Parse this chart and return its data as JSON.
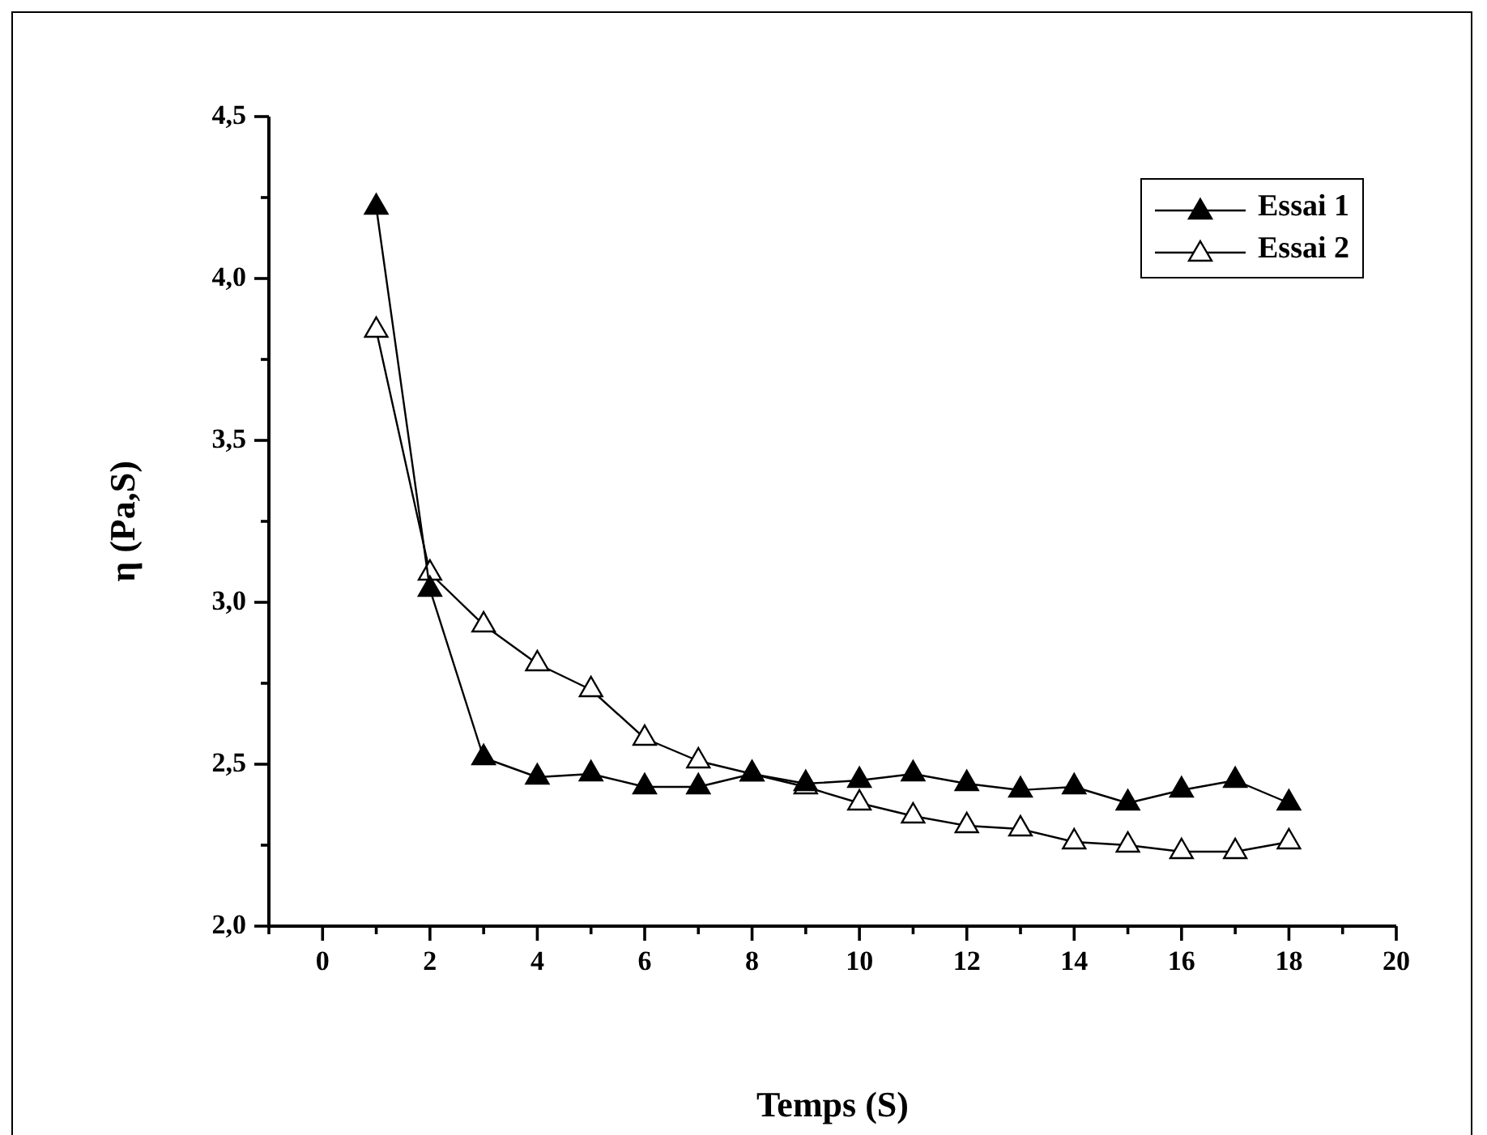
{
  "chart_data": {
    "type": "line",
    "xlabel": "Temps (S)",
    "ylabel": "η (Pa,S)",
    "x": [
      1,
      2,
      3,
      4,
      5,
      6,
      7,
      8,
      9,
      10,
      11,
      12,
      13,
      14,
      15,
      16,
      17,
      18
    ],
    "series": [
      {
        "name": "Essai 1",
        "color": "#000000",
        "marker": "triangle",
        "values": [
          4.22,
          3.04,
          2.52,
          2.46,
          2.47,
          2.43,
          2.43,
          2.47,
          2.44,
          2.45,
          2.47,
          2.44,
          2.42,
          2.43,
          2.38,
          2.42,
          2.45,
          2.38
        ]
      },
      {
        "name": "Essai 2",
        "color": "#000000",
        "marker": "triangle",
        "values": [
          3.84,
          3.09,
          2.93,
          2.81,
          2.73,
          2.58,
          2.51,
          2.47,
          2.43,
          2.38,
          2.34,
          2.31,
          2.3,
          2.26,
          2.25,
          2.23,
          2.23,
          2.26
        ]
      }
    ],
    "xlim": [
      -1,
      20
    ],
    "xticks": [
      {
        "value": -1,
        "label": null
      },
      0,
      {
        "value": 1,
        "label": null
      },
      2,
      {
        "value": 3,
        "label": null
      },
      4,
      {
        "value": 5,
        "label": null
      },
      6,
      {
        "value": 7,
        "label": null
      },
      8,
      {
        "value": 9,
        "label": null
      },
      10,
      {
        "value": 11,
        "label": null
      },
      12,
      {
        "value": 13,
        "label": null
      },
      14,
      {
        "value": 15,
        "label": null
      },
      16,
      {
        "value": 17,
        "label": null
      },
      18,
      {
        "value": 19,
        "label": null
      },
      20
    ],
    "ylim": [
      2,
      4.5
    ],
    "yticks": [
      {
        "value": 2,
        "label": "2,0"
      },
      {
        "value": 2.25,
        "label": null
      },
      {
        "value": 2.5,
        "label": "2,5"
      },
      {
        "value": 2.75,
        "label": null
      },
      {
        "value": 3,
        "label": "3,0"
      },
      {
        "value": 3.25,
        "label": null
      },
      {
        "value": 3.5,
        "label": "3,5"
      },
      {
        "value": 3.75,
        "label": null
      },
      {
        "value": 4,
        "label": "4,0"
      },
      {
        "value": 4.25,
        "label": null
      },
      {
        "value": 4.5,
        "label": "4,5"
      }
    ],
    "grid": false,
    "legend": "top right",
    "line_style": "solid"
  }
}
